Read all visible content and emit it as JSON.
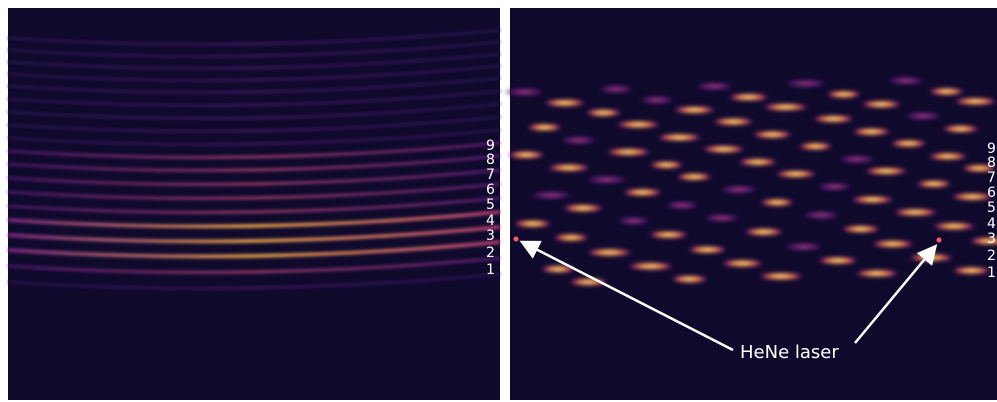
{
  "left_panel": {
    "order_labels": [
      "9",
      "8",
      "7",
      "6",
      "5",
      "4",
      "3",
      "2",
      "1"
    ]
  },
  "right_panel": {
    "order_labels": [
      "9",
      "8",
      "7",
      "6",
      "5",
      "4",
      "3",
      "2",
      "1"
    ]
  },
  "annotation": {
    "text": "HeNe laser"
  }
}
